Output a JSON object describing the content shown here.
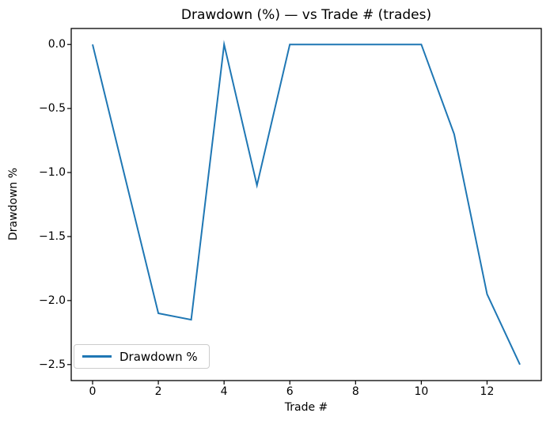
{
  "chart_data": {
    "type": "line",
    "title": "Drawdown (%) — vs Trade # (trades)",
    "xlabel": "Trade #",
    "ylabel": "Drawdown %",
    "x": [
      0,
      1,
      2,
      3,
      4,
      5,
      6,
      7,
      8,
      9,
      10,
      11,
      12,
      13
    ],
    "series": [
      {
        "name": "Drawdown %",
        "values": [
          0.0,
          -1.05,
          -2.1,
          -2.15,
          0.0,
          -1.1,
          0.0,
          0.0,
          0.0,
          0.0,
          0.0,
          -0.7,
          -1.95,
          -2.5
        ],
        "color": "#1f77b4"
      }
    ],
    "xlim": [
      -0.65,
      13.65
    ],
    "ylim": [
      -2.625,
      0.125
    ],
    "xticks": [
      0,
      2,
      4,
      6,
      8,
      10,
      12
    ],
    "xtick_labels": [
      "0",
      "2",
      "4",
      "6",
      "8",
      "10",
      "12"
    ],
    "yticks": [
      0.0,
      -0.5,
      -1.0,
      -1.5,
      -2.0,
      -2.5
    ],
    "ytick_labels": [
      "0.0",
      "−0.5",
      "−1.0",
      "−1.5",
      "−2.0",
      "−2.5"
    ],
    "grid": false,
    "legend": {
      "position": "lower left",
      "entries": [
        "Drawdown %"
      ]
    }
  },
  "colors": {
    "line": "#1f77b4",
    "spine": "#000000",
    "tick": "#000000",
    "legend_border": "#cccccc",
    "background": "#ffffff"
  }
}
